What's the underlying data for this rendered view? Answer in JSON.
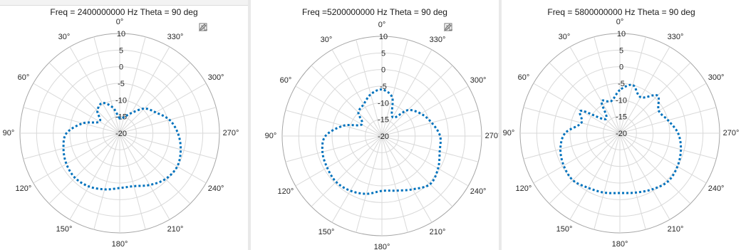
{
  "colors": {
    "series": "#0072BD",
    "grid": "#d9d9d9",
    "axis": "#a6a6a6",
    "text": "#262626"
  },
  "icons": [
    "brush-edit-icon",
    "legend-list-icon"
  ],
  "chart_data": [
    {
      "type": "polar-line",
      "title": "Freq = 2400000000 Hz Theta = 90 deg",
      "angle_ticks": [
        "0°",
        "330°",
        "300°",
        "270°",
        "240°",
        "210°",
        "180°",
        "150°",
        "120°",
        "90°",
        "60°",
        "30°"
      ],
      "radial_ticks": [
        "10",
        "5",
        "0",
        "-5",
        "-10",
        "-15",
        "-20"
      ],
      "rlim": [
        -20,
        10
      ],
      "angle_direction": "clockwise, 0° at top",
      "series": [
        {
          "line_style": "dotted",
          "angles_deg": [
            0,
            15,
            30,
            45,
            60,
            75,
            90,
            105,
            120,
            135,
            150,
            165,
            180,
            195,
            210,
            225,
            240,
            255,
            270,
            285,
            300,
            315,
            330,
            345
          ],
          "values": [
            -15.5,
            -12,
            -9.5,
            -10.5,
            -13,
            -8.5,
            -4,
            -2.5,
            -1.5,
            -1,
            -1.5,
            -2.5,
            -3.5,
            -3.5,
            -2,
            -0.5,
            0,
            -1,
            -2.5,
            -4.5,
            -7.5,
            -9.5,
            -13,
            -15
          ]
        }
      ]
    },
    {
      "type": "polar-line",
      "title": "Freq =5200000000 Hz Theta = 90 deg",
      "angle_ticks": [
        "0°",
        "330°",
        "300°",
        "270°",
        "240°",
        "210°",
        "180°",
        "150°",
        "120°",
        "90°",
        "60°",
        "30°"
      ],
      "radial_ticks": [
        "10",
        "5",
        "0",
        "-5",
        "-10",
        "-15",
        "-20"
      ],
      "rlim": [
        -20,
        10
      ],
      "angle_direction": "clockwise, 0° at top",
      "series": [
        {
          "line_style": "dotted",
          "angles_deg": [
            0,
            15,
            30,
            45,
            60,
            75,
            90,
            105,
            120,
            135,
            150,
            165,
            180,
            195,
            210,
            225,
            240,
            255,
            270,
            285,
            300,
            315,
            330,
            345
          ],
          "values": [
            -6,
            -7,
            -9,
            -10,
            -13,
            -8,
            -3,
            -1.5,
            -1,
            -0.5,
            -1,
            -2,
            -3.5,
            -3,
            -1.5,
            0.5,
            -0.5,
            -2,
            -2.5,
            -4.5,
            -6.5,
            -9,
            -13.5,
            -8
          ]
        }
      ]
    },
    {
      "type": "polar-line",
      "title": "Freq = 5800000000 Hz Theta = 90 deg",
      "angle_ticks": [
        "0°",
        "330°",
        "300°",
        "270°",
        "240°",
        "210°",
        "180°",
        "150°",
        "120°",
        "90°",
        "60°",
        "30°"
      ],
      "radial_ticks": [
        "10",
        "5",
        "0",
        "-5",
        "-10",
        "-15",
        "-20"
      ],
      "rlim": [
        -20,
        10
      ],
      "angle_direction": "clockwise, 0° at top",
      "series": [
        {
          "line_style": "dotted",
          "angles_deg": [
            0,
            15,
            30,
            45,
            60,
            75,
            90,
            105,
            120,
            135,
            150,
            165,
            180,
            195,
            210,
            225,
            240,
            255,
            270,
            285,
            300,
            315,
            330,
            345
          ],
          "values": [
            -7,
            -10,
            -9,
            -14,
            -6.5,
            -8,
            -3.5,
            -1.5,
            -0.5,
            0,
            -1,
            -1.5,
            -2,
            -1.5,
            -0.5,
            0.5,
            0,
            -1,
            -2.5,
            -5,
            -6.5,
            -4,
            -7.5,
            -5
          ]
        }
      ]
    }
  ]
}
